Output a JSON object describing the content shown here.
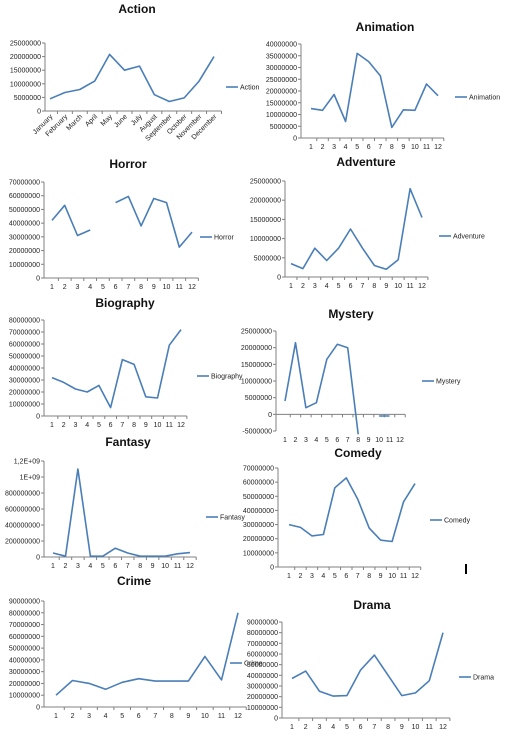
{
  "chart_data": [
    {
      "type": "line",
      "title": "Action",
      "categories": [
        "January",
        "February",
        "March",
        "April",
        "May",
        "June",
        "July",
        "August",
        "September",
        "October",
        "November",
        "December"
      ],
      "series": [
        {
          "name": "Action",
          "values": [
            4500000,
            6800000,
            7900000,
            11000000,
            20800000,
            15000000,
            16500000,
            6000000,
            3500000,
            4800000,
            11000000,
            20000000
          ]
        }
      ],
      "ylim": [
        0,
        25000000
      ],
      "yticks": [
        "0",
        "5000000",
        "10000000",
        "15000000",
        "20000000",
        "25000000"
      ],
      "xtick_rotation": "diagonal",
      "legend": "right"
    },
    {
      "type": "line",
      "title": "Animation",
      "categories": [
        "1",
        "2",
        "3",
        "4",
        "5",
        "6",
        "7",
        "8",
        "9",
        "10",
        "11",
        "12"
      ],
      "series": [
        {
          "name": "Animation",
          "values": [
            12500000,
            11800000,
            18500000,
            7000000,
            36000000,
            32500000,
            26500000,
            4500000,
            12000000,
            11800000,
            23000000,
            18000000
          ]
        }
      ],
      "ylim": [
        0,
        40000000
      ],
      "yticks": [
        "0",
        "5000000",
        "10000000",
        "15000000",
        "20000000",
        "25000000",
        "30000000",
        "35000000",
        "40000000"
      ],
      "legend": "right"
    },
    {
      "type": "line",
      "title": "Horror",
      "categories": [
        "1",
        "2",
        "3",
        "4",
        "5",
        "6",
        "7",
        "8",
        "9",
        "10",
        "11",
        "12"
      ],
      "series": [
        {
          "name": "Horror",
          "values": [
            42000000,
            53000000,
            31000000,
            35000000,
            null,
            55000000,
            59500000,
            38000000,
            58000000,
            55000000,
            22500000,
            33500000
          ]
        }
      ],
      "ylim": [
        0,
        70000000
      ],
      "yticks": [
        "0",
        "10000000",
        "20000000",
        "30000000",
        "40000000",
        "50000000",
        "60000000",
        "70000000"
      ],
      "legend": "right"
    },
    {
      "type": "line",
      "title": "Adventure",
      "categories": [
        "1",
        "2",
        "3",
        "4",
        "5",
        "6",
        "7",
        "8",
        "9",
        "10",
        "11",
        "12"
      ],
      "series": [
        {
          "name": "Adventure",
          "values": [
            3500000,
            2200000,
            7500000,
            4300000,
            7500000,
            12500000,
            7500000,
            3000000,
            2000000,
            4500000,
            23000000,
            15500000
          ]
        }
      ],
      "ylim": [
        0,
        25000000
      ],
      "yticks": [
        "0",
        "5000000",
        "10000000",
        "15000000",
        "20000000",
        "25000000"
      ],
      "legend": "right"
    },
    {
      "type": "line",
      "title": "Biography",
      "categories": [
        "1",
        "2",
        "3",
        "4",
        "5",
        "6",
        "7",
        "8",
        "9",
        "10",
        "11",
        "12"
      ],
      "series": [
        {
          "name": "Biography",
          "values": [
            32000000,
            28000000,
            22500000,
            20000000,
            25500000,
            7000000,
            47000000,
            43000000,
            16000000,
            15000000,
            59000000,
            72000000
          ]
        }
      ],
      "ylim": [
        0,
        80000000
      ],
      "yticks": [
        "0",
        "10000000",
        "20000000",
        "30000000",
        "40000000",
        "50000000",
        "60000000",
        "70000000",
        "80000000"
      ],
      "legend": "right"
    },
    {
      "type": "line",
      "title": "Mystery",
      "categories": [
        "1",
        "2",
        "3",
        "4",
        "5",
        "6",
        "7",
        "8",
        "9",
        "10",
        "11",
        "12"
      ],
      "series": [
        {
          "name": "Mystery",
          "values": [
            4000000,
            21500000,
            2000000,
            3500000,
            16500000,
            21000000,
            20000000,
            -6000000,
            null,
            -500000,
            -500000,
            null
          ]
        }
      ],
      "ylim": [
        -5000000,
        25000000
      ],
      "yticks": [
        "-5000000",
        "0",
        "5000000",
        "10000000",
        "15000000",
        "20000000",
        "25000000"
      ],
      "legend": "right"
    },
    {
      "type": "line",
      "title": "Fantasy",
      "categories": [
        "1",
        "2",
        "3",
        "4",
        "5",
        "6",
        "7",
        "8",
        "9",
        "10",
        "11",
        "12"
      ],
      "series": [
        {
          "name": "Fantasy",
          "values": [
            50000000,
            10000000,
            1100000000,
            10000000,
            10000000,
            110000000,
            50000000,
            10000000,
            10000000,
            10000000,
            40000000,
            55000000
          ]
        }
      ],
      "ylim": [
        0,
        1200000000
      ],
      "yticks": [
        "0",
        "200000000",
        "400000000",
        "600000000",
        "800000000",
        "1E+09",
        "1,2E+09"
      ],
      "legend": "right"
    },
    {
      "type": "line",
      "title": "Comedy",
      "categories": [
        "1",
        "2",
        "3",
        "4",
        "5",
        "6",
        "7",
        "8",
        "9",
        "10",
        "11",
        "12"
      ],
      "series": [
        {
          "name": "Comedy",
          "values": [
            30000000,
            28000000,
            22000000,
            23000000,
            56000000,
            63000000,
            48000000,
            27500000,
            19000000,
            18000000,
            46000000,
            59000000
          ]
        }
      ],
      "ylim": [
        0,
        70000000
      ],
      "yticks": [
        "0",
        "10000000",
        "20000000",
        "30000000",
        "40000000",
        "50000000",
        "60000000",
        "70000000"
      ],
      "legend": "right"
    },
    {
      "type": "line",
      "title": "Crime",
      "categories": [
        "1",
        "2",
        "3",
        "4",
        "5",
        "6",
        "7",
        "8",
        "9",
        "10",
        "11",
        "12"
      ],
      "series": [
        {
          "name": "Crime",
          "values": [
            10000000,
            22500000,
            20000000,
            15000000,
            21000000,
            24000000,
            22000000,
            22000000,
            22000000,
            43000000,
            23000000,
            80000000
          ]
        }
      ],
      "ylim": [
        0,
        90000000
      ],
      "yticks": [
        "0",
        "10000000",
        "20000000",
        "30000000",
        "40000000",
        "50000000",
        "60000000",
        "70000000",
        "80000000",
        "90000000"
      ],
      "legend": "right"
    },
    {
      "type": "line",
      "title": "Drama",
      "categories": [
        "1",
        "2",
        "3",
        "4",
        "5",
        "6",
        "7",
        "8",
        "9",
        "10",
        "11",
        "12"
      ],
      "series": [
        {
          "name": "Drama",
          "values": [
            37000000,
            44000000,
            25000000,
            20500000,
            21000000,
            45000000,
            59000000,
            40000000,
            21000000,
            23500000,
            35000000,
            80000000
          ]
        }
      ],
      "ylim": [
        0,
        90000000
      ],
      "yticks": [
        "0",
        "10000000",
        "20000000",
        "30000000",
        "40000000",
        "50000000",
        "60000000",
        "70000000",
        "80000000",
        "90000000"
      ],
      "legend": "right"
    }
  ]
}
